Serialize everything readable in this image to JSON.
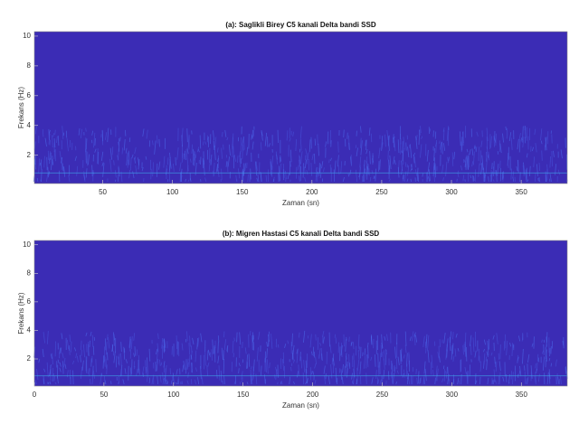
{
  "chart_data": [
    {
      "type": "spectrogram",
      "title": "(a): Saglikli Birey C5 kanali Delta bandi SSD",
      "xlabel": "Zaman (sn)",
      "ylabel": "Frekans (Hz)",
      "xlim": [
        1,
        383
      ],
      "xticks": [
        50,
        100,
        150,
        200,
        250,
        300,
        350
      ],
      "ylim": [
        0.1,
        10.3
      ],
      "yticks": [
        2,
        4,
        6,
        8,
        10
      ],
      "color": "#3b2cb5"
    },
    {
      "type": "spectrogram",
      "title": "(b): Migren Hastasi C5 kanali Delta bandi SSD",
      "xlabel": "Zaman (sn)",
      "ylabel": "Frekans (Hz)",
      "xlim": [
        0,
        383
      ],
      "xticks": [
        0,
        50,
        100,
        150,
        200,
        250,
        300,
        350
      ],
      "ylim": [
        0.1,
        10.3
      ],
      "yticks": [
        2,
        4,
        6,
        8,
        10
      ],
      "color": "#3b2cb5"
    }
  ]
}
